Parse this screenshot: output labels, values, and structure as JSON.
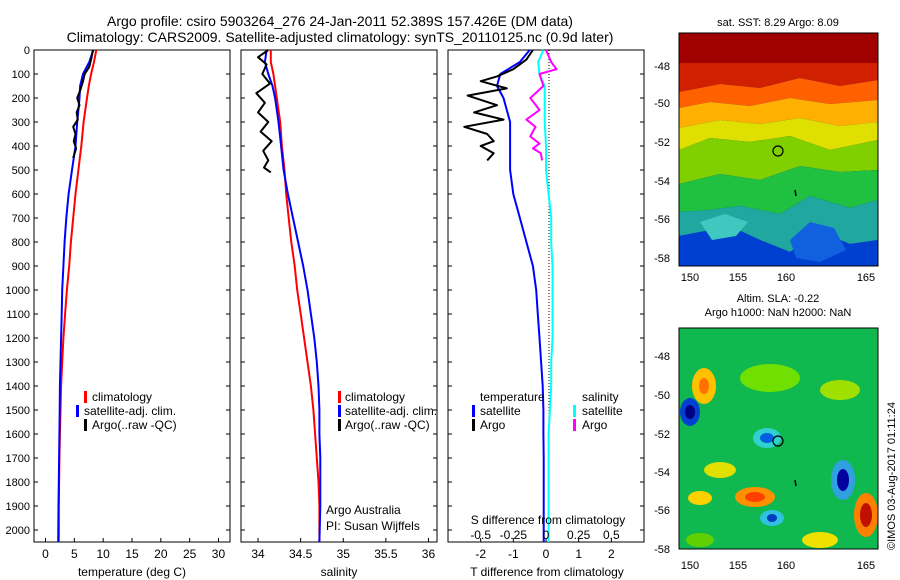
{
  "title_line1": "Argo profile: csiro 5903264_276 24-Jan-2011 52.389S 157.426E (DM data)",
  "title_line2": "Climatology: CARS2009. Satellite-adjusted climatology: synTS_20110125.nc (0.9d later)",
  "depth_ticks": [
    "0",
    "100",
    "200",
    "300",
    "400",
    "500",
    "600",
    "700",
    "800",
    "900",
    "1000",
    "1100",
    "1200",
    "1300",
    "1400",
    "1500",
    "1600",
    "1700",
    "1800",
    "1900",
    "2000"
  ],
  "colors": {
    "climatology": "#ff0000",
    "satellite": "#0000ff",
    "argo": "#000000",
    "sat_salinity": "#00ffff",
    "argo_salinity": "#ff00ff"
  },
  "panels": {
    "temperature": {
      "xlabel": "temperature (deg C)",
      "xticks": [
        "0",
        "5",
        "10",
        "15",
        "20",
        "25",
        "30"
      ],
      "legend": [
        "climatology",
        "satellite-adj. clim.",
        "Argo(..raw -QC)"
      ]
    },
    "salinity": {
      "xlabel": "salinity",
      "xticks": [
        "34",
        "34.5",
        "35",
        "35.5",
        "36"
      ],
      "legend": [
        "climatology",
        "satellite-adj. clim.",
        "Argo(..raw -QC)"
      ],
      "note1": "Argo Australia",
      "note2": "PI: Susan Wijffels"
    },
    "difference": {
      "xlabel": "T difference from climatology",
      "top_label": "S difference from climatology",
      "xticks": [
        "-2",
        "-1",
        "0",
        "1",
        "2"
      ],
      "sticks": [
        "-0.5",
        "-0.25",
        "0",
        "0.25",
        "0.5"
      ],
      "legend_t_head": "temperature",
      "legend_s_head": "salinity",
      "legend_sat": "satellite",
      "legend_argo": "Argo"
    }
  },
  "maps": {
    "sst_title": "sat. SST: 8.29 Argo: 8.09",
    "sla_title1": "Altim. SLA: -0.22",
    "sla_title2": "Argo h1000: NaN h2000: NaN",
    "lat_ticks": [
      "-48",
      "-50",
      "-52",
      "-54",
      "-56",
      "-58"
    ],
    "lon_ticks": [
      "150",
      "155",
      "160",
      "165"
    ]
  },
  "stamp": "©IMOS 03-Aug-2017 01:11:24",
  "chart_data": [
    {
      "type": "line",
      "xlabel": "temperature (deg C)",
      "ylabel": "",
      "xlim": [
        -2,
        32
      ],
      "ylim": [
        2050,
        0
      ],
      "series": [
        {
          "name": "climatology",
          "x": [
            8.8,
            8.4,
            7.9,
            7.5,
            7.2,
            6.9,
            6.6,
            6.2,
            5.7,
            5.2,
            4.8,
            4.4,
            4.1,
            3.7,
            3.4,
            3.1,
            2.9,
            2.7,
            2.6,
            2.5,
            2.4,
            2.35,
            2.3,
            2.3
          ],
          "y": [
            0,
            50,
            100,
            150,
            200,
            250,
            300,
            400,
            500,
            600,
            700,
            800,
            900,
            1000,
            1100,
            1200,
            1300,
            1400,
            1500,
            1600,
            1700,
            1800,
            1900,
            2050
          ]
        },
        {
          "name": "satellite-adj. clim.",
          "x": [
            8.3,
            7.6,
            6.5,
            6.0,
            5.9,
            5.7,
            5.5,
            5.2,
            4.6,
            4.0,
            3.6,
            3.3,
            3.1,
            2.9,
            2.8,
            2.7,
            2.6,
            2.5,
            2.45,
            2.4,
            2.35,
            2.3,
            2.25,
            2.2
          ],
          "y": [
            0,
            50,
            100,
            150,
            200,
            250,
            300,
            400,
            500,
            600,
            700,
            800,
            900,
            1000,
            1100,
            1200,
            1300,
            1400,
            1500,
            1600,
            1700,
            1800,
            1900,
            2050
          ]
        },
        {
          "name": "Argo(..raw -QC)",
          "x": [
            8.2,
            8.0,
            7.6,
            6.8,
            6.5,
            6.0,
            5.5,
            5.9,
            5.4,
            5.6,
            4.8,
            5.2,
            4.9,
            5.3,
            4.8
          ],
          "y": [
            0,
            30,
            70,
            100,
            130,
            170,
            200,
            230,
            260,
            290,
            320,
            350,
            380,
            410,
            450
          ]
        }
      ]
    },
    {
      "type": "line",
      "xlabel": "salinity",
      "ylabel": "",
      "xlim": [
        33.8,
        36.1
      ],
      "ylim": [
        2050,
        0
      ],
      "series": [
        {
          "name": "climatology",
          "x": [
            34.15,
            34.15,
            34.18,
            34.2,
            34.22,
            34.24,
            34.26,
            34.28,
            34.31,
            34.33,
            34.36,
            34.39,
            34.43,
            34.46,
            34.5,
            34.54,
            34.58,
            34.62,
            34.65,
            34.67,
            34.69,
            34.71,
            34.72,
            34.72
          ],
          "y": [
            0,
            50,
            100,
            150,
            200,
            250,
            300,
            400,
            500,
            600,
            700,
            800,
            900,
            1000,
            1100,
            1200,
            1300,
            1400,
            1500,
            1600,
            1700,
            1800,
            1900,
            2050
          ]
        },
        {
          "name": "satellite-adj. clim.",
          "x": [
            34.1,
            34.08,
            34.12,
            34.17,
            34.2,
            34.22,
            34.24,
            34.27,
            34.3,
            34.35,
            34.41,
            34.47,
            34.53,
            34.58,
            34.62,
            34.66,
            34.69,
            34.71,
            34.72,
            34.72,
            34.73,
            34.73,
            34.73,
            34.72
          ],
          "y": [
            0,
            50,
            100,
            150,
            200,
            250,
            300,
            400,
            500,
            600,
            700,
            800,
            900,
            1000,
            1100,
            1200,
            1300,
            1400,
            1500,
            1600,
            1700,
            1800,
            1900,
            2050
          ]
        },
        {
          "name": "Argo(..raw -QC)",
          "x": [
            34.12,
            34.0,
            34.1,
            34.05,
            34.14,
            33.98,
            34.08,
            34.0,
            34.12,
            34.03,
            34.16,
            34.06,
            34.12,
            34.07,
            34.15
          ],
          "y": [
            0,
            30,
            60,
            100,
            140,
            180,
            220,
            260,
            300,
            340,
            380,
            420,
            460,
            490,
            510
          ]
        }
      ]
    },
    {
      "type": "line",
      "xlabel": "T difference from climatology",
      "top_xlabel": "S difference from climatology",
      "xlim": [
        -3,
        3
      ],
      "s_xlim": [
        -0.75,
        0.75
      ],
      "ylim": [
        2050,
        0
      ],
      "series": [
        {
          "name": "temperature satellite",
          "x": [
            -0.5,
            -0.8,
            -1.4,
            -1.5,
            -1.3,
            -1.2,
            -1.1,
            -1.1,
            -1.1,
            -1.0,
            -0.8,
            -0.6,
            -0.4,
            -0.3,
            -0.25,
            -0.2,
            -0.15,
            -0.1,
            -0.08,
            -0.08,
            -0.07,
            -0.07,
            -0.07,
            -0.07
          ],
          "y": [
            0,
            50,
            100,
            150,
            200,
            250,
            300,
            400,
            500,
            600,
            700,
            800,
            900,
            1000,
            1100,
            1200,
            1300,
            1400,
            1500,
            1600,
            1700,
            1800,
            1900,
            2050
          ]
        },
        {
          "name": "temperature Argo",
          "x": [
            -0.4,
            -0.6,
            -1.0,
            -1.5,
            -2.0,
            -1.2,
            -2.4,
            -1.5,
            -2.2,
            -1.3,
            -2.5,
            -1.8,
            -1.6,
            -2.0,
            -1.6,
            -1.8
          ],
          "y": [
            0,
            40,
            80,
            110,
            130,
            160,
            190,
            230,
            260,
            290,
            320,
            350,
            380,
            400,
            430,
            460
          ]
        },
        {
          "name": "salinity satellite",
          "x": [
            -0.02,
            -0.06,
            -0.05,
            -0.01,
            -0.01,
            -0.01,
            -0.01,
            0.0,
            0.0,
            0.02,
            0.04,
            0.04,
            0.05,
            0.05,
            0.05,
            0.05,
            0.04,
            0.04,
            0.03,
            0.02,
            0.02,
            0.02,
            0.02,
            0.02
          ],
          "y": [
            0,
            50,
            100,
            150,
            200,
            250,
            300,
            400,
            500,
            600,
            700,
            800,
            900,
            1000,
            1100,
            1200,
            1300,
            1400,
            1500,
            1600,
            1700,
            1800,
            1900,
            2050
          ]
        },
        {
          "name": "salinity Argo",
          "x": [
            0.0,
            0.04,
            0.08,
            -0.05,
            -0.02,
            -0.12,
            -0.05,
            -0.15,
            -0.08,
            -0.12,
            -0.05,
            -0.1,
            -0.04,
            -0.03
          ],
          "y": [
            0,
            50,
            80,
            100,
            150,
            200,
            250,
            290,
            320,
            360,
            390,
            410,
            430,
            460
          ]
        }
      ]
    }
  ]
}
